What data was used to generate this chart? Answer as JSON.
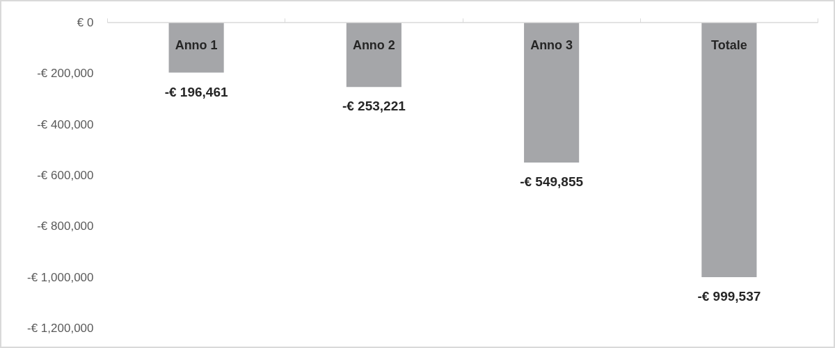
{
  "chart_data": {
    "type": "bar",
    "categories": [
      "Anno 1",
      "Anno 2",
      "Anno 3",
      "Totale"
    ],
    "values": [
      -196461,
      -253221,
      -549855,
      -999537
    ],
    "color": "#a5a6a9",
    "value_labels": [
      "-€ 196,461",
      "-€ 253,221",
      "-€ 549,855",
      "-€ 999,537"
    ],
    "ylim": [
      -1200000,
      0
    ],
    "yticks": [
      {
        "value": 0,
        "label": "€ 0"
      },
      {
        "value": -200000,
        "label": "-€ 200,000"
      },
      {
        "value": -400000,
        "label": "-€ 400,000"
      },
      {
        "value": -600000,
        "label": "-€ 600,000"
      },
      {
        "value": -800000,
        "label": "-€ 800,000"
      },
      {
        "value": -1000000,
        "label": "-€ 1,000,000"
      },
      {
        "value": -1200000,
        "label": "-€ 1,200,000"
      }
    ]
  }
}
